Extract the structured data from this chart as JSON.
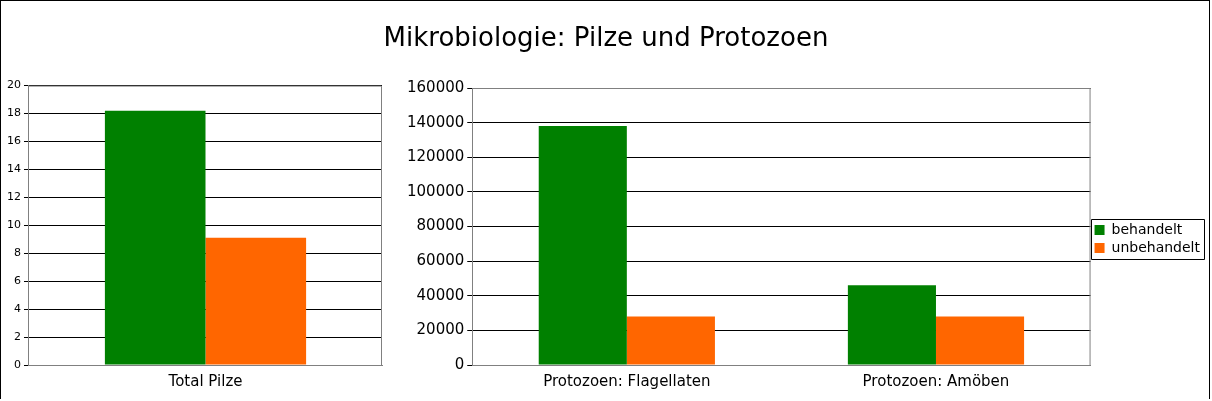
{
  "chart_data": [
    {
      "type": "bar",
      "categories": [
        "Total Pilze"
      ],
      "series": [
        {
          "color": "#008000",
          "values": [
            18.2
          ]
        },
        {
          "color": "#ff6600",
          "values": [
            9.1
          ]
        }
      ],
      "ylim": [
        0,
        20
      ],
      "yticks": [
        0,
        2,
        4,
        6,
        8,
        10,
        12,
        14,
        16,
        18,
        20
      ],
      "grid": "y",
      "legend": false
    },
    {
      "type": "bar",
      "title": "Mikrobiologie: Pilze und Protozoen",
      "categories": [
        "Protozoen: Flagellaten",
        "Protozoen: Amöben"
      ],
      "series": [
        {
          "name": "behandelt",
          "color": "#008000",
          "values": [
            138000,
            46000
          ]
        },
        {
          "name": "unbehandelt",
          "color": "#ff6600",
          "values": [
            28000,
            28000
          ]
        }
      ],
      "ylim": [
        0,
        160000
      ],
      "yticks": [
        0,
        20000,
        40000,
        60000,
        80000,
        100000,
        120000,
        140000,
        160000
      ],
      "grid": "y",
      "legend": "right"
    }
  ]
}
